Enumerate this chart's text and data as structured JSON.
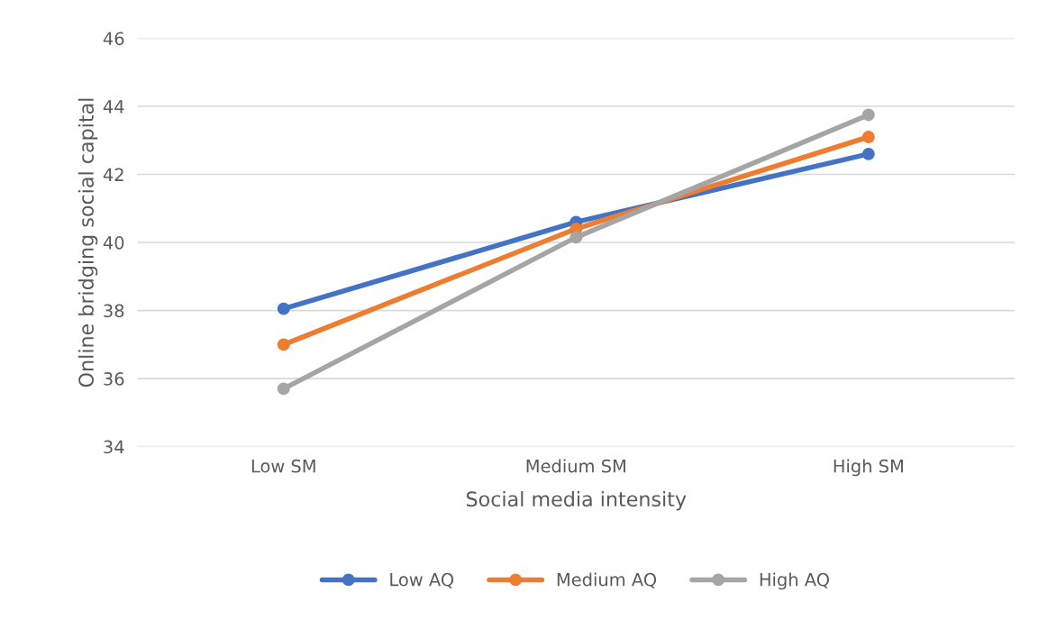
{
  "chart_data": {
    "type": "line",
    "xlabel": "Social media intensity",
    "ylabel": "Online bridging social capital",
    "categories": [
      "Low SM",
      "Medium SM",
      "High SM"
    ],
    "series": [
      {
        "name": "Low AQ",
        "color": "#4472c4",
        "values": [
          38.05,
          40.6,
          42.6
        ]
      },
      {
        "name": "Medium AQ",
        "color": "#ed7d31",
        "values": [
          37.0,
          40.4,
          43.1
        ]
      },
      {
        "name": "High AQ",
        "color": "#a5a5a5",
        "values": [
          35.7,
          40.15,
          43.75
        ]
      }
    ],
    "ylim": [
      34,
      46
    ],
    "yticks": [
      34,
      36,
      38,
      40,
      42,
      44,
      46
    ],
    "grid": "y",
    "legend": "bottom",
    "marker": "circle",
    "line_style": "solid"
  }
}
